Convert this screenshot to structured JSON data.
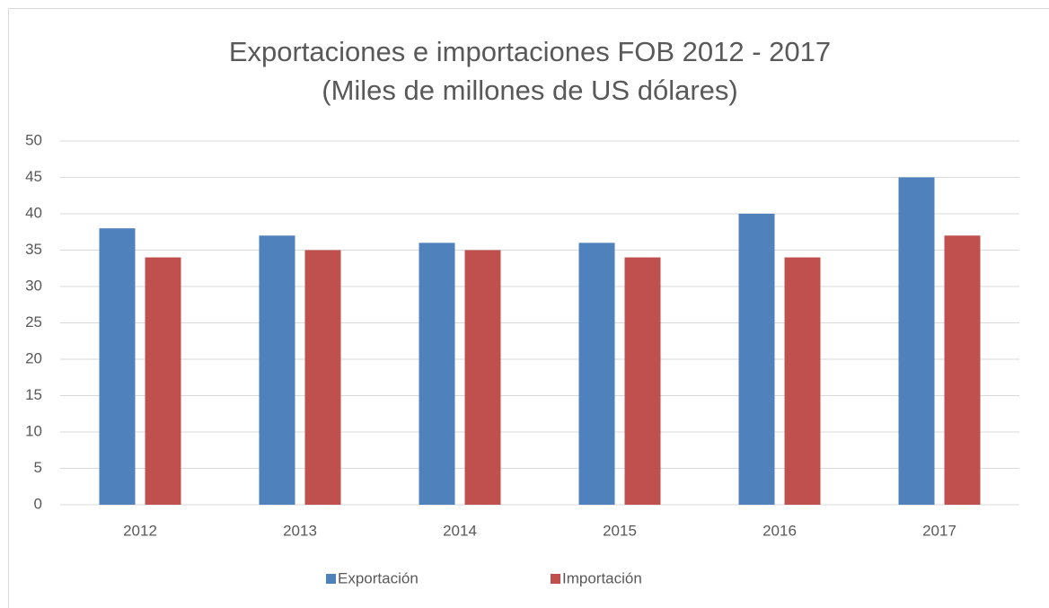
{
  "chart_data": {
    "type": "bar",
    "title": [
      "Exportaciones e importaciones FOB 2012 - 2017",
      "(Miles de millones de US dólares)"
    ],
    "categories": [
      "2012",
      "2013",
      "2014",
      "2015",
      "2016",
      "2017"
    ],
    "series": [
      {
        "name": "Exportación",
        "color": "#4f81bd",
        "values": [
          38,
          37,
          36,
          36,
          40,
          45
        ]
      },
      {
        "name": "Importación",
        "color": "#c0504d",
        "values": [
          34,
          35,
          35,
          34,
          34,
          37
        ]
      }
    ],
    "ylim": [
      0,
      50
    ],
    "yticks": [
      0,
      5,
      10,
      15,
      20,
      25,
      30,
      35,
      40,
      45,
      50
    ],
    "grid": true,
    "legend": "bottom"
  }
}
